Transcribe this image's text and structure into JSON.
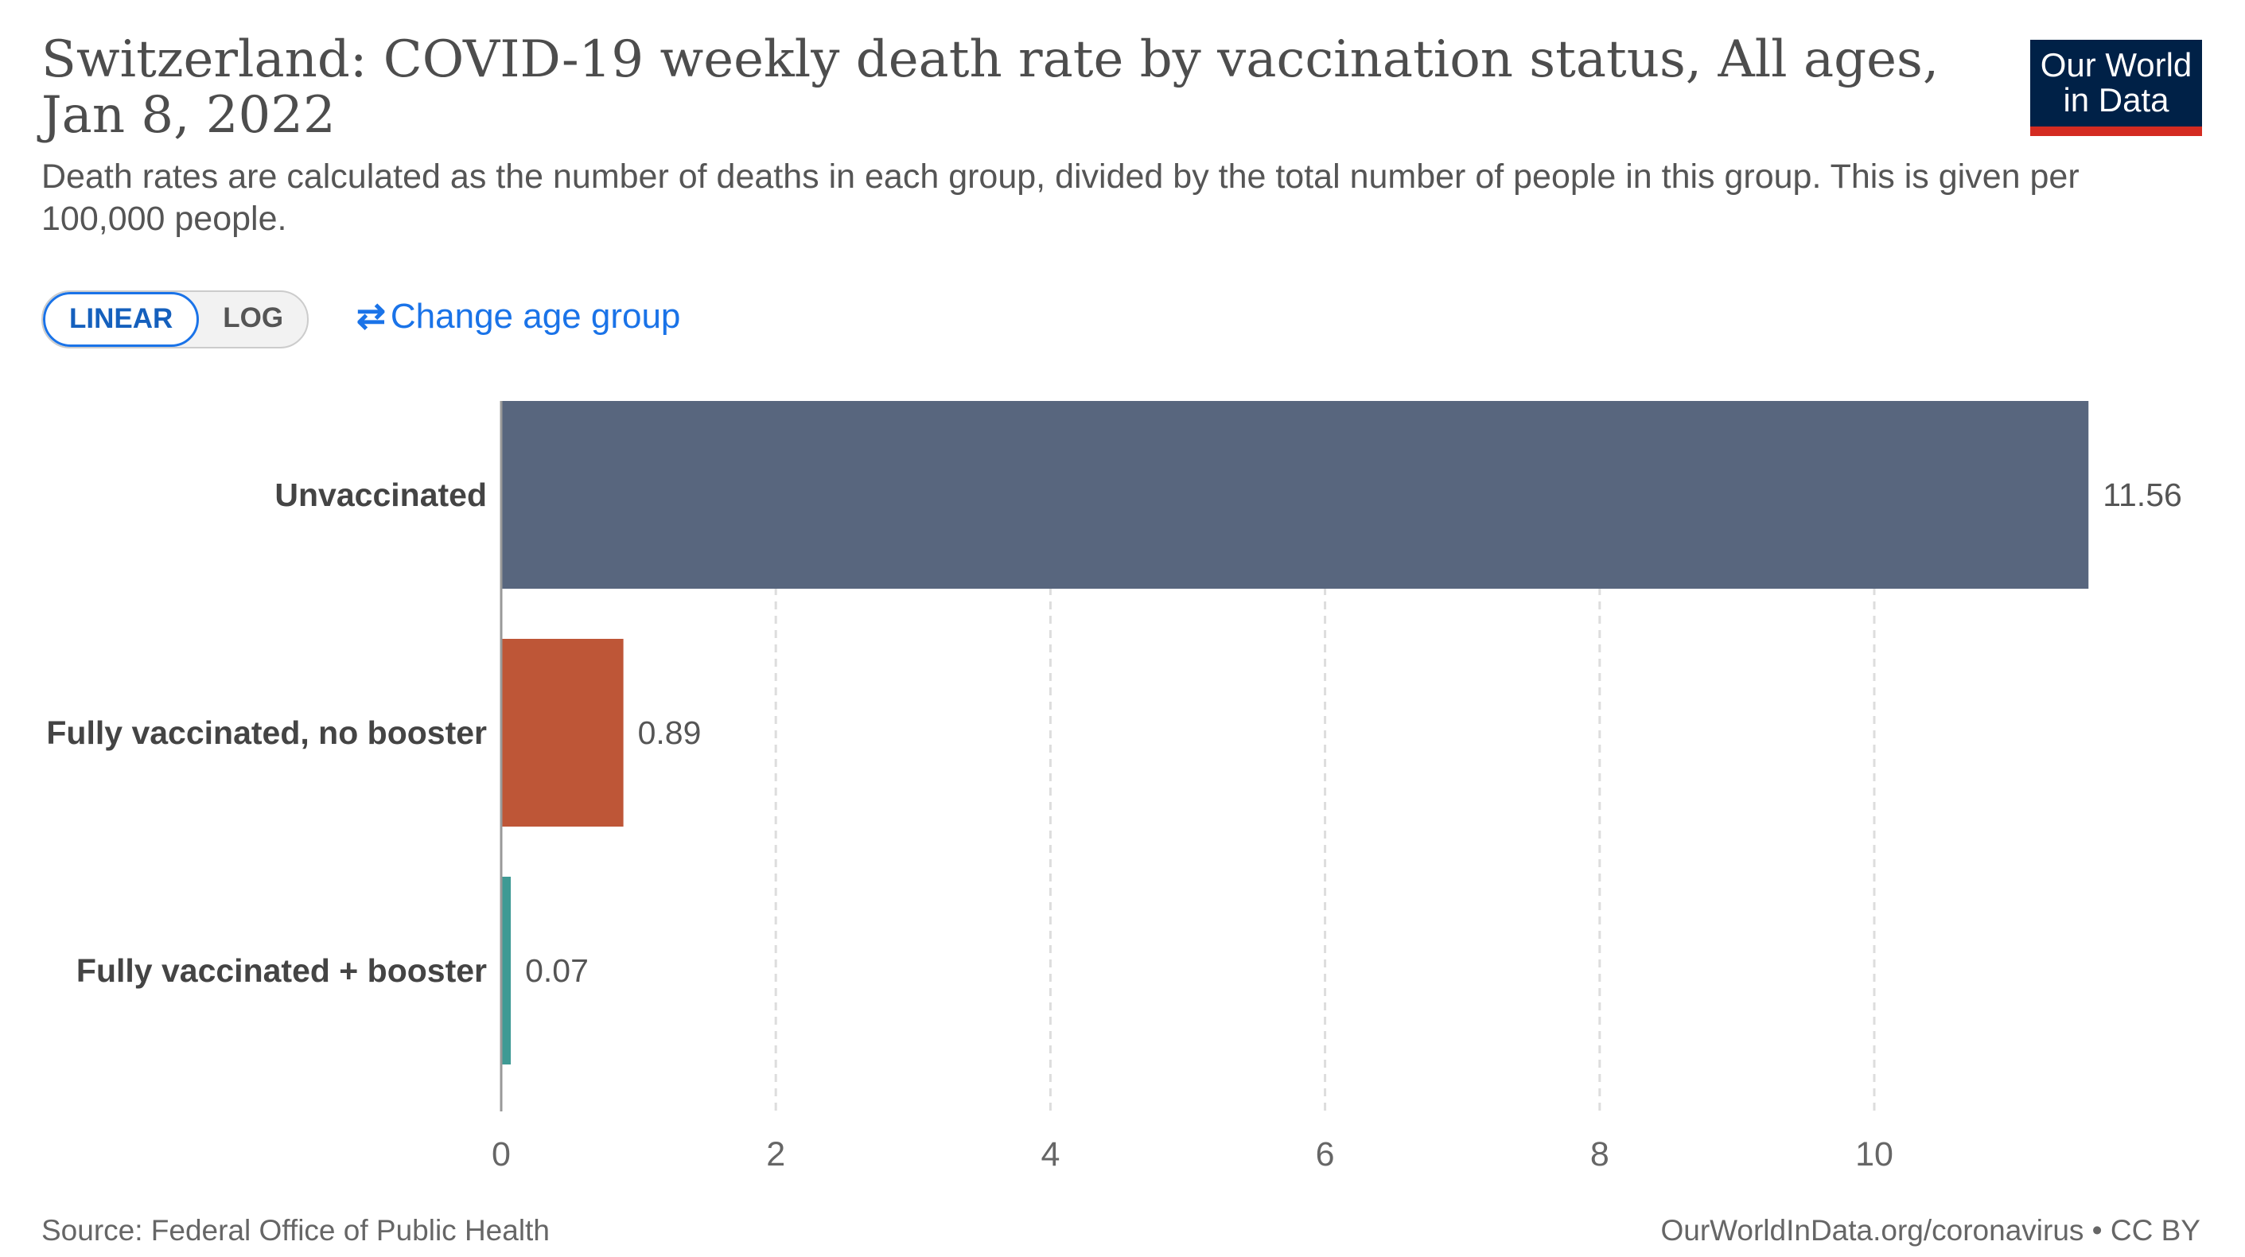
{
  "header": {
    "title": "Switzerland: COVID-19 weekly death rate by vaccination status, All ages, Jan 8, 2022",
    "subtitle": "Death rates are calculated as the number of deaths in each group, divided by the total number of people in this group. This is given per 100,000 people.",
    "logo": "Our World in Data"
  },
  "controls": {
    "linear": "LINEAR",
    "log": "LOG",
    "scale_selected": "linear",
    "change_age": "Change age group",
    "change_icon": "swap-arrows-icon"
  },
  "footer": {
    "source": "Source: Federal Office of Public Health",
    "license": "OurWorldInData.org/coronavirus • CC BY"
  },
  "chart_data": {
    "type": "bar",
    "orientation": "horizontal",
    "categories": [
      "Unvaccinated",
      "Fully vaccinated, no booster",
      "Fully vaccinated + booster"
    ],
    "values": [
      11.56,
      0.89,
      0.07
    ],
    "value_labels": [
      "11.56",
      "0.89",
      "0.07"
    ],
    "colors": [
      "#58667e",
      "#be5637",
      "#3e9a94"
    ],
    "xlim": [
      0,
      11.56
    ],
    "xticks": [
      0,
      2,
      4,
      6,
      8,
      10
    ],
    "grid": "vertical dashed",
    "xlabel": "",
    "ylabel": ""
  }
}
